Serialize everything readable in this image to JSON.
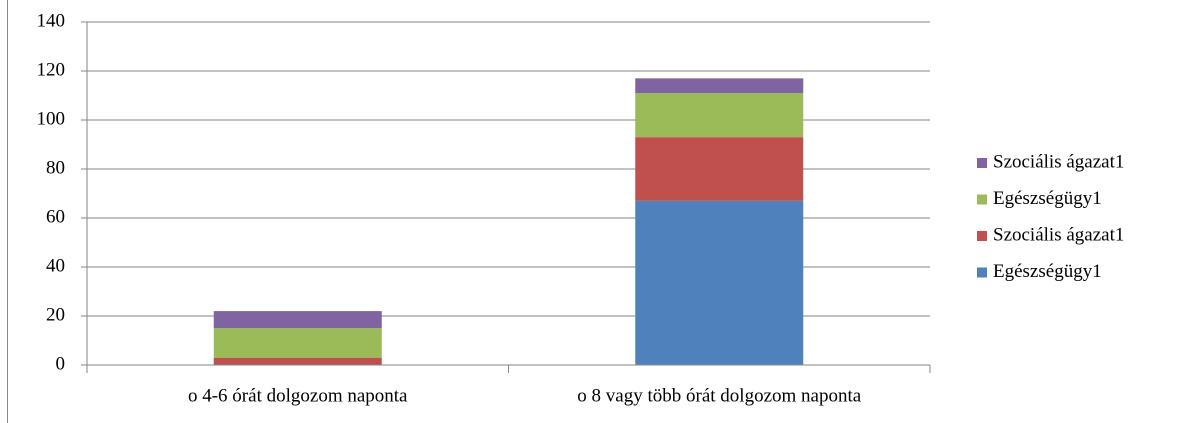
{
  "chart_data": {
    "type": "stacked_bar",
    "categories": [
      "o   4-6 órát dolgozom naponta",
      "o   8 vagy több órát dolgozom naponta"
    ],
    "series": [
      {
        "name": "Egészségügy1",
        "color": "#4f81bd",
        "values": [
          0,
          67
        ]
      },
      {
        "name": "Szociális ágazat1",
        "color": "#c0504d",
        "values": [
          3,
          26
        ]
      },
      {
        "name": "Egészségügy1",
        "color": "#9bbb59",
        "values": [
          12,
          18
        ]
      },
      {
        "name": "Szociális ágazat1",
        "color": "#8064a2",
        "values": [
          7,
          6
        ]
      }
    ],
    "ylim": [
      0,
      140
    ],
    "yticks": [
      0,
      20,
      40,
      60,
      80,
      100,
      120,
      140
    ],
    "grid": true,
    "legend": "right"
  }
}
